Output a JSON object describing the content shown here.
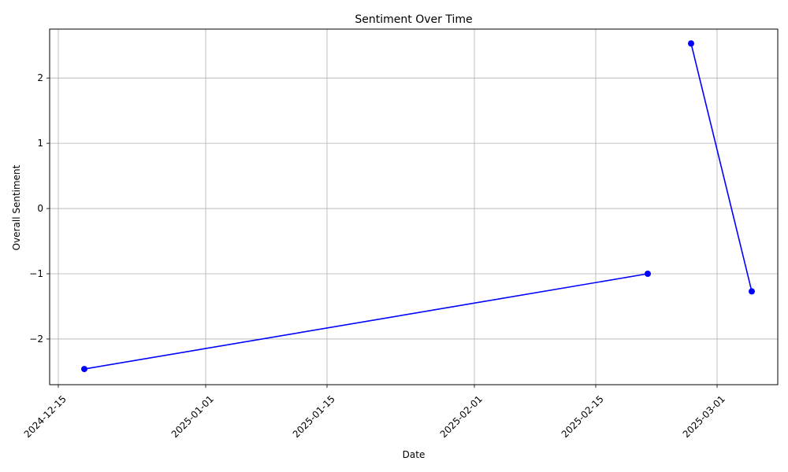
{
  "chart_data": {
    "type": "line",
    "title": "Sentiment Over Time",
    "xlabel": "Date",
    "ylabel": "Overall Sentiment",
    "x_tick_labels": [
      "2024-12-15",
      "2025-01-01",
      "2025-01-15",
      "2025-02-01",
      "2025-02-15",
      "2025-03-01"
    ],
    "y_tick_labels": [
      "−2",
      "−1",
      "0",
      "1",
      "2"
    ],
    "y_ticks": [
      -2,
      -1,
      0,
      1,
      2
    ],
    "xlim": [
      "2024-12-14",
      "2025-03-08"
    ],
    "ylim": [
      -2.7,
      2.75
    ],
    "grid": true,
    "line_color": "#0000ff",
    "segments": [
      [
        {
          "x": "2024-12-18",
          "y": -2.46
        },
        {
          "x": "2025-02-21",
          "y": -1.0
        }
      ],
      [
        {
          "x": "2025-02-26",
          "y": 2.53
        },
        {
          "x": "2025-03-05",
          "y": -1.27
        }
      ]
    ]
  }
}
